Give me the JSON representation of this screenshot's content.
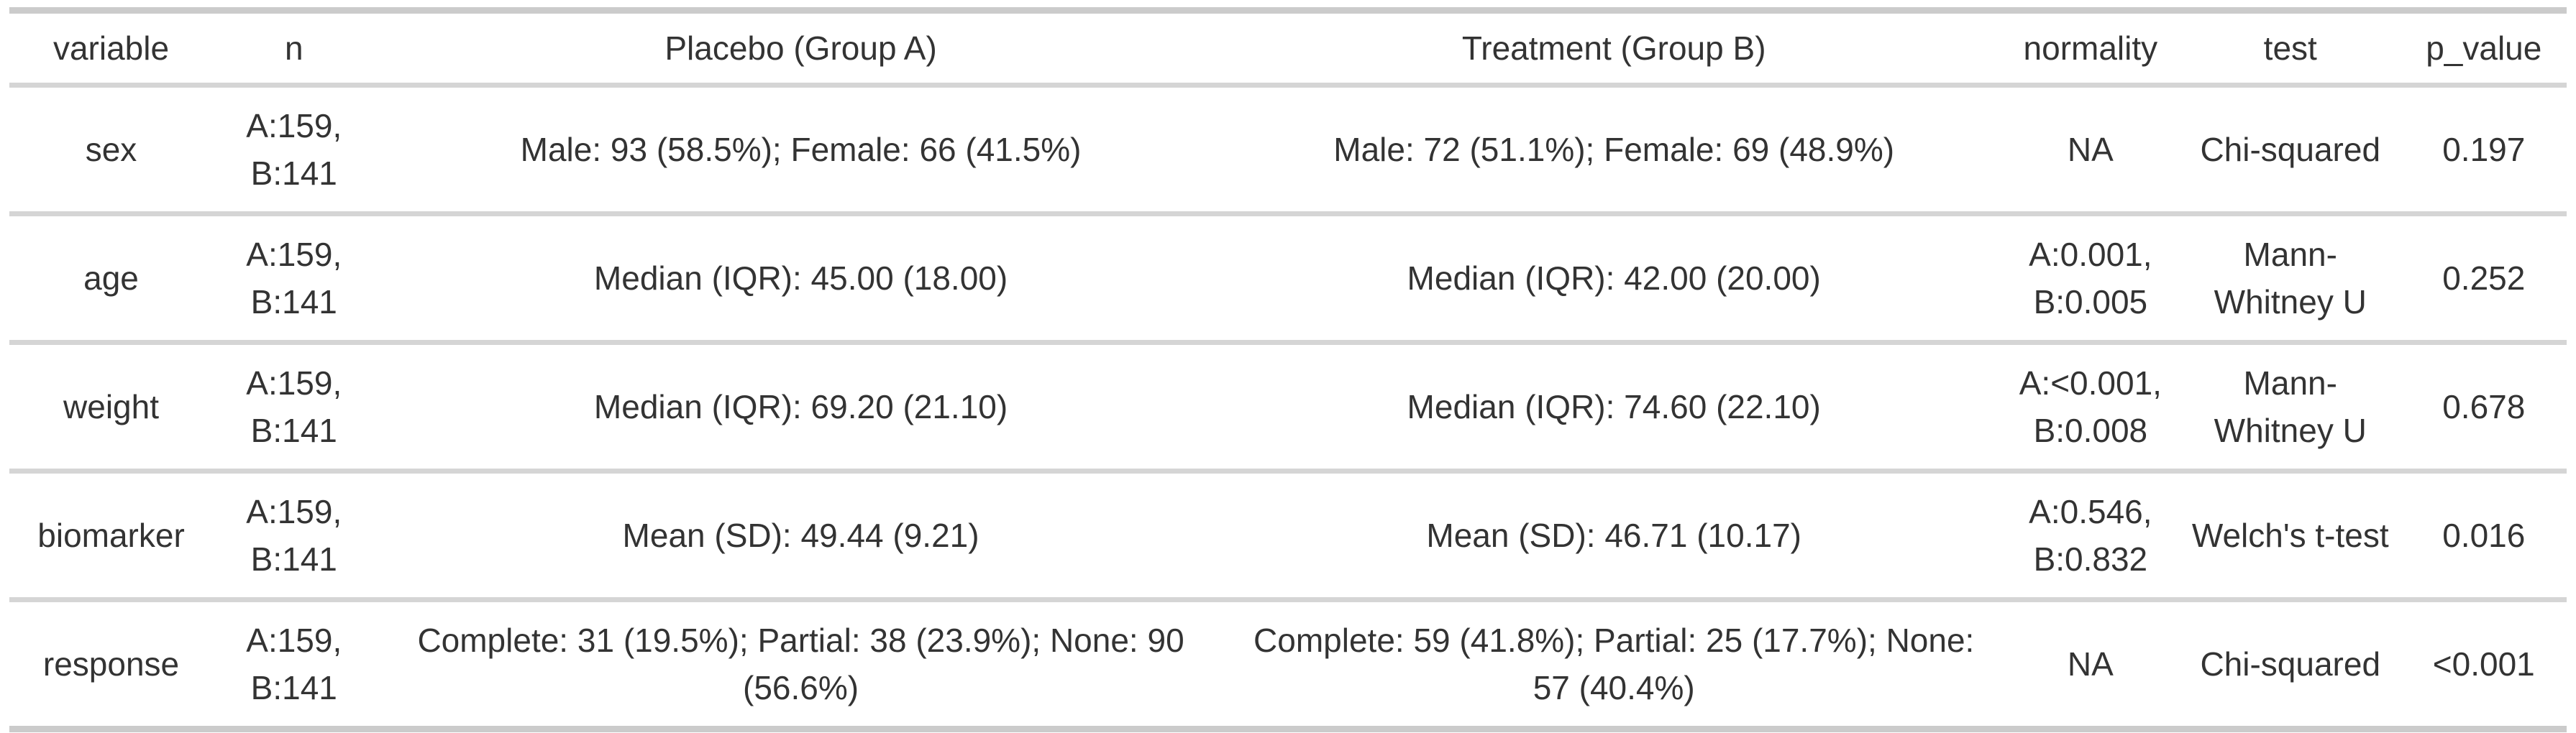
{
  "colors": {
    "text": "#333333",
    "rule_inner": "#d5d5d5",
    "rule_outer": "#cbcbcb",
    "background": "#ffffff"
  },
  "chart_data": {
    "type": "table",
    "title": "",
    "columns": [
      {
        "key": "variable",
        "label": "variable",
        "width_pct": "7.96%"
      },
      {
        "key": "n",
        "label": "n",
        "width_pct": "6.34%"
      },
      {
        "key": "placebo",
        "label": "Placebo (Group A)",
        "width_pct": "33.30%"
      },
      {
        "key": "treatment",
        "label": "Treatment (Group B)",
        "width_pct": "30.29%"
      },
      {
        "key": "normality",
        "label": "normality",
        "width_pct": "6.98%"
      },
      {
        "key": "test",
        "label": "test",
        "width_pct": "8.65%"
      },
      {
        "key": "p_value",
        "label": "p_value",
        "width_pct": "6.48%"
      }
    ],
    "rows": [
      {
        "variable": "sex",
        "n": "A:159, B:141",
        "placebo": "Male: 93 (58.5%); Female: 66 (41.5%)",
        "treatment": "Male: 72 (51.1%); Female: 69 (48.9%)",
        "normality": "NA",
        "test": "Chi-squared",
        "p_value": "0.197"
      },
      {
        "variable": "age",
        "n": "A:159, B:141",
        "placebo": "Median (IQR): 45.00 (18.00)",
        "treatment": "Median (IQR): 42.00 (20.00)",
        "normality": "A:0.001, B:0.005",
        "test": "Mann-Whitney U",
        "p_value": "0.252"
      },
      {
        "variable": "weight",
        "n": "A:159, B:141",
        "placebo": "Median (IQR): 69.20 (21.10)",
        "treatment": "Median (IQR): 74.60 (22.10)",
        "normality": "A:<0.001, B:0.008",
        "test": "Mann-Whitney U",
        "p_value": "0.678"
      },
      {
        "variable": "biomarker",
        "n": "A:159, B:141",
        "placebo": "Mean (SD): 49.44 (9.21)",
        "treatment": "Mean (SD): 46.71 (10.17)",
        "normality": "A:0.546, B:0.832",
        "test": "Welch's t-test",
        "p_value": "0.016"
      },
      {
        "variable": "response",
        "n": "A:159, B:141",
        "placebo": "Complete: 31 (19.5%); Partial: 38 (23.9%); None: 90 (56.6%)",
        "treatment": "Complete: 59 (41.8%); Partial: 25 (17.7%); None: 57 (40.4%)",
        "normality": "NA",
        "test": "Chi-squared",
        "p_value": "<0.001"
      }
    ]
  }
}
